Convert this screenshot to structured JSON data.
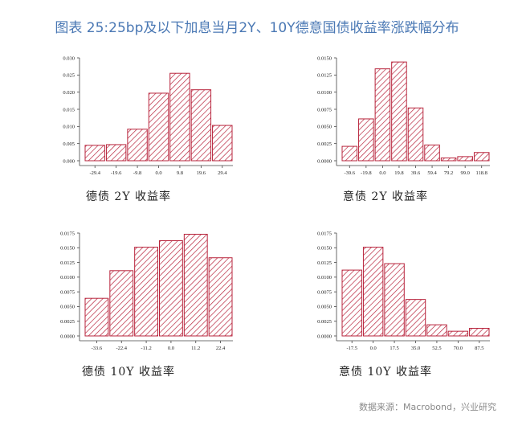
{
  "title": "图表 25:25bp及以下加息当月2Y、10Y德意国债收益率涨跌幅分布",
  "source": "数据来源：Macrobond，兴业研究",
  "colors": {
    "title": "#4a78b4",
    "bar_stroke": "#b8243c",
    "hatch": "#b8243c"
  },
  "chart_data": [
    {
      "type": "bar",
      "title": "德债 2Y 收益率",
      "categories": [
        "-29.4",
        "-19.6",
        "-9.8",
        "0.0",
        "9.8",
        "19.6",
        "29.4"
      ],
      "values": [
        0.0045,
        0.0047,
        0.0092,
        0.0197,
        0.0255,
        0.0207,
        0.0103
      ],
      "yticks": [
        "0.000",
        "0.005",
        "0.010",
        "0.015",
        "0.020",
        "0.025",
        "0.030"
      ],
      "ylim": [
        0,
        0.03
      ],
      "xlabel": "",
      "ylabel": ""
    },
    {
      "type": "bar",
      "title": "意债 2Y 收益率",
      "categories": [
        "-39.6",
        "-19.8",
        "0.0",
        "19.8",
        "39.6",
        "59.4",
        "79.2",
        "99.0",
        "118.8"
      ],
      "values": [
        0.0021,
        0.0061,
        0.0134,
        0.0144,
        0.0077,
        0.0023,
        0.0004,
        0.0006,
        0.0012
      ],
      "yticks": [
        "0.0000",
        "0.0025",
        "0.0050",
        "0.0075",
        "0.0100",
        "0.0125",
        "0.0150"
      ],
      "ylim": [
        0,
        0.015
      ],
      "xlabel": "",
      "ylabel": ""
    },
    {
      "type": "bar",
      "title": "德债 10Y 收益率",
      "categories": [
        "-33.6",
        "-22.4",
        "-11.2",
        "0.0",
        "11.2",
        "22.4"
      ],
      "values": [
        0.0064,
        0.0111,
        0.0151,
        0.0162,
        0.0173,
        0.0133
      ],
      "yticks": [
        "0.0000",
        "0.0025",
        "0.0050",
        "0.0075",
        "0.0100",
        "0.0125",
        "0.0150",
        "0.0175"
      ],
      "ylim": [
        0,
        0.0175
      ],
      "xlabel": "",
      "ylabel": ""
    },
    {
      "type": "bar",
      "title": "意债 10Y 收益率",
      "categories": [
        "-17.5",
        "0.0",
        "17.5",
        "35.0",
        "52.5",
        "70.0",
        "87.5"
      ],
      "values": [
        0.0112,
        0.0151,
        0.0123,
        0.0062,
        0.0019,
        0.0008,
        0.0013
      ],
      "yticks": [
        "0.0000",
        "0.0025",
        "0.0050",
        "0.0075",
        "0.0100",
        "0.0125",
        "0.0150",
        "0.0175"
      ],
      "ylim": [
        0,
        0.0175
      ],
      "xlabel": "",
      "ylabel": ""
    }
  ]
}
